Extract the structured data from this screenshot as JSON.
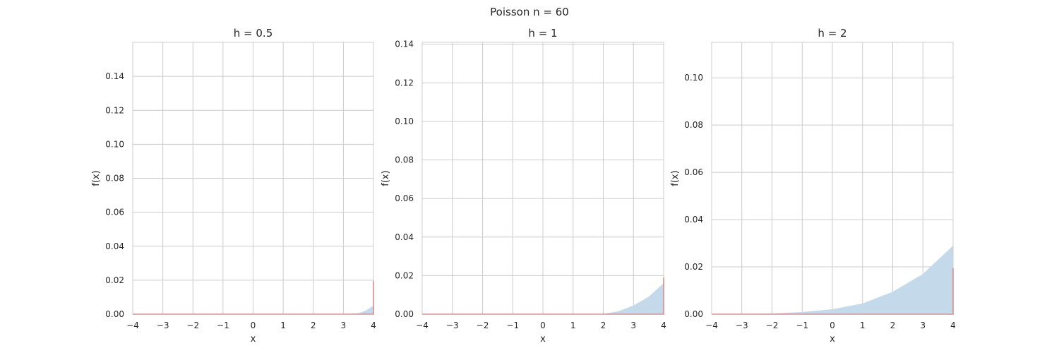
{
  "figure": {
    "suptitle": "Poisson n = 60"
  },
  "chart_data": [
    {
      "type": "area",
      "title": "h = 0.5",
      "xlabel": "x",
      "ylabel": "f(x)",
      "xlim": [
        -4,
        4
      ],
      "ylim": [
        0,
        0.16
      ],
      "xticks": [
        "−4",
        "−3",
        "−2",
        "−1",
        "0",
        "1",
        "2",
        "3",
        "4"
      ],
      "yticks": [
        "0.00",
        "0.02",
        "0.04",
        "0.06",
        "0.08",
        "0.10",
        "0.12",
        "0.14"
      ],
      "ytick_values": [
        0,
        0.02,
        0.04,
        0.06,
        0.08,
        0.1,
        0.12,
        0.14
      ],
      "grid": true,
      "series": [
        {
          "type": "area",
          "color": "#c4d9ea",
          "x": [
            -4,
            -3,
            -2,
            -1,
            0,
            1,
            2,
            3,
            3.5,
            3.75,
            4
          ],
          "y": [
            0,
            0,
            0,
            0,
            0,
            0,
            0,
            0,
            0.0006,
            0.0022,
            0.005
          ]
        },
        {
          "type": "line",
          "color": "#e8242a",
          "x": [
            -4,
            4,
            4
          ],
          "y": [
            0,
            0,
            0.0195
          ]
        }
      ]
    },
    {
      "type": "area",
      "title": "h = 1",
      "xlabel": "x",
      "ylabel": "f(x)",
      "xlim": [
        -4,
        4
      ],
      "ylim": [
        0,
        0.141
      ],
      "xticks": [
        "−4",
        "−3",
        "−2",
        "−1",
        "0",
        "1",
        "2",
        "3",
        "4"
      ],
      "yticks": [
        "0.00",
        "0.02",
        "0.04",
        "0.06",
        "0.08",
        "0.10",
        "0.12",
        "0.14"
      ],
      "ytick_values": [
        0,
        0.02,
        0.04,
        0.06,
        0.08,
        0.1,
        0.12,
        0.14
      ],
      "grid": true,
      "series": [
        {
          "type": "area",
          "color": "#c4d9ea",
          "x": [
            -4,
            -3,
            -2,
            -1,
            0,
            1,
            2,
            2.5,
            3,
            3.5,
            4
          ],
          "y": [
            0,
            0,
            0,
            0,
            0,
            0,
            0.0002,
            0.0015,
            0.0045,
            0.009,
            0.016
          ]
        },
        {
          "type": "line",
          "color": "#e8242a",
          "x": [
            -4,
            4,
            4
          ],
          "y": [
            0,
            0,
            0.019
          ]
        }
      ]
    },
    {
      "type": "area",
      "title": "h = 2",
      "xlabel": "x",
      "ylabel": "f(x)",
      "xlim": [
        -4,
        4
      ],
      "ylim": [
        0,
        0.115
      ],
      "xticks": [
        "−4",
        "−3",
        "−2",
        "−1",
        "0",
        "1",
        "2",
        "3",
        "4"
      ],
      "yticks": [
        "0.00",
        "0.02",
        "0.04",
        "0.06",
        "0.08",
        "0.10"
      ],
      "ytick_values": [
        0,
        0.02,
        0.04,
        0.06,
        0.08,
        0.1
      ],
      "grid": true,
      "series": [
        {
          "type": "area",
          "color": "#c4d9ea",
          "x": [
            -4,
            -3,
            -2,
            -1,
            0,
            1,
            2,
            3,
            4
          ],
          "y": [
            0,
            0.0001,
            0.0003,
            0.0009,
            0.0021,
            0.0045,
            0.0095,
            0.017,
            0.029
          ]
        },
        {
          "type": "line",
          "color": "#e8242a",
          "x": [
            -4,
            4,
            4
          ],
          "y": [
            0,
            0,
            0.0195
          ]
        }
      ]
    }
  ]
}
